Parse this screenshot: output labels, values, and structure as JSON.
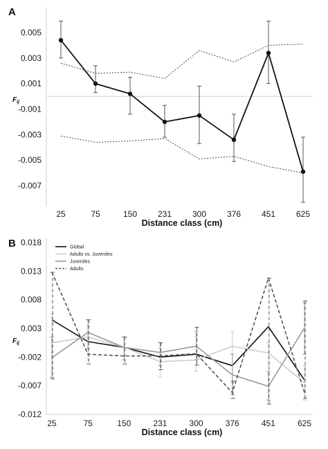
{
  "chart_data": [
    {
      "type": "line",
      "panel_label": "A",
      "xlabel": "Distance class (cm)",
      "ylabel": "F",
      "ylabel_sub": "ij",
      "categories": [
        "25",
        "75",
        "150",
        "231",
        "300",
        "376",
        "451",
        "625"
      ],
      "yticks": [
        "0.005",
        "0.003",
        "0.001",
        "-0.001",
        "-0.003",
        "-0.005",
        "-0.007"
      ],
      "ylim": [
        -0.0084,
        0.0067
      ],
      "zero_line": true,
      "series": [
        {
          "values": [
            0.0044,
            0.001,
            0.0002,
            -0.002,
            -0.0015,
            -0.0034,
            0.0034,
            -0.0059
          ],
          "err_low": [
            0.003,
            0.0003,
            -0.0014,
            -0.0032,
            -0.0037,
            -0.0051,
            0.001,
            -0.0083
          ],
          "err_high": [
            0.0059,
            0.0024,
            0.0015,
            -0.0007,
            0.0008,
            -0.0014,
            0.0059,
            -0.0032
          ],
          "color": "#111111",
          "style": "solid-markers"
        },
        {
          "values": [
            0.0026,
            0.0018,
            0.0019,
            0.0014,
            0.0036,
            0.0027,
            0.004,
            0.0041
          ],
          "color": "#333333",
          "style": "dotted"
        },
        {
          "values": [
            -0.0031,
            -0.0036,
            -0.0035,
            -0.0033,
            -0.0049,
            -0.0047,
            -0.0055,
            -0.006
          ],
          "color": "#333333",
          "style": "dotted"
        }
      ]
    },
    {
      "type": "line",
      "panel_label": "B",
      "xlabel": "Distance class (cm)",
      "ylabel": "F",
      "ylabel_sub": "ij",
      "categories": [
        "25",
        "75",
        "150",
        "231",
        "300",
        "376",
        "451",
        "625"
      ],
      "yticks": [
        "0.018",
        "0.013",
        "0.008",
        "0.003",
        "-0.002",
        "-0.007",
        "-0.012"
      ],
      "ylim": [
        -0.012,
        0.018
      ],
      "legend_position": "top-left",
      "series": [
        {
          "name": "Global",
          "values": [
            0.0045,
            0.0007,
            -0.0003,
            -0.002,
            -0.0015,
            -0.0035,
            0.0033,
            -0.006
          ],
          "color": "#111111",
          "style": "solid"
        },
        {
          "name": "Adults vs. Juveniles",
          "values": [
            0.0005,
            0.0015,
            -0.0003,
            -0.0028,
            -0.0025,
            -0.0001,
            -0.0013,
            -0.0065
          ],
          "err_low": [
            -0.0045,
            -0.0025,
            -0.0025,
            -0.0055,
            -0.0045,
            -0.0065,
            -0.0035,
            -0.0095
          ],
          "err_high": [
            0.0055,
            0.0035,
            0.0015,
            -0.0005,
            0.0015,
            0.0025,
            0.0005,
            -0.0035
          ],
          "color": "#cccccc",
          "style": "solid"
        },
        {
          "name": "Juveniles",
          "values": [
            -0.0021,
            0.0023,
            -0.0003,
            -0.0012,
            -0.0001,
            -0.0051,
            -0.0071,
            0.0031
          ],
          "err_low": [
            -0.0055,
            -0.0005,
            -0.0025,
            -0.0035,
            -0.0025,
            -0.0085,
            -0.0095,
            -0.0015
          ],
          "err_high": [
            0.0015,
            0.0045,
            0.0015,
            0.0005,
            0.0025,
            -0.0015,
            -0.0045,
            0.0075
          ],
          "color": "#999999",
          "style": "solid"
        },
        {
          "name": "Adults",
          "values": [
            0.0128,
            -0.0015,
            -0.0018,
            -0.0018,
            -0.0014,
            -0.0082,
            0.0118,
            -0.0082
          ],
          "err_low": [
            -0.0058,
            -0.0032,
            -0.0032,
            -0.0042,
            -0.0034,
            -0.0092,
            -0.0102,
            -0.0092
          ],
          "err_high": [
            0.0128,
            0.0045,
            0.0015,
            0.0005,
            0.0032,
            -0.0062,
            0.0118,
            0.0078
          ],
          "color": "#555555",
          "style": "dashed"
        }
      ]
    }
  ]
}
